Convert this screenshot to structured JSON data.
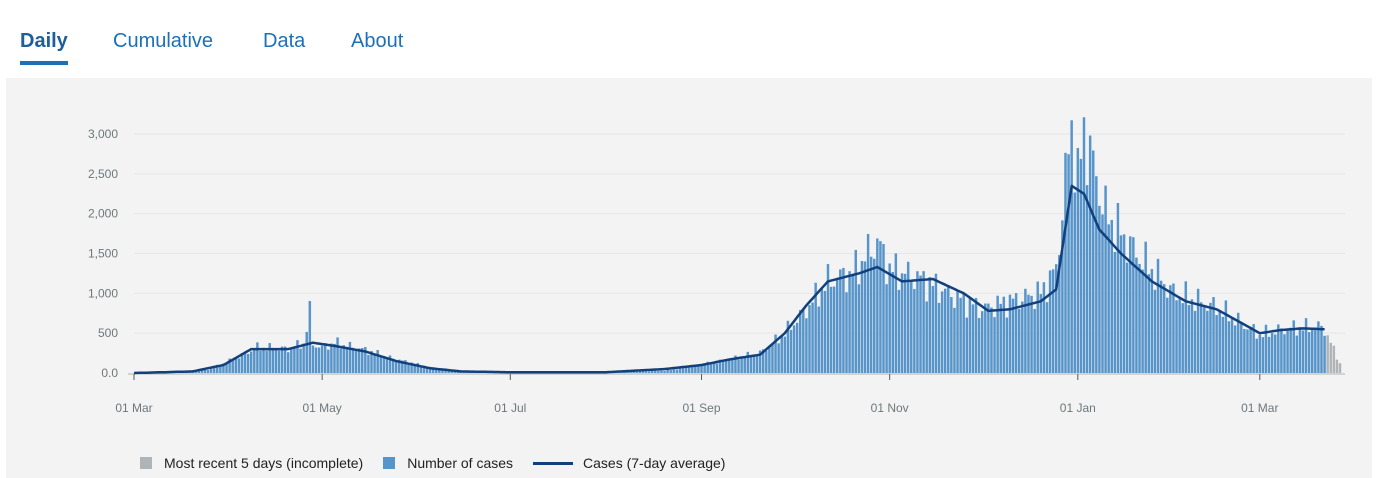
{
  "tabs": [
    {
      "label": "Daily",
      "active": true
    },
    {
      "label": "Cumulative",
      "active": false
    },
    {
      "label": "Data",
      "active": false
    },
    {
      "label": "About",
      "active": false
    }
  ],
  "legend": [
    {
      "label": "Most recent 5 days (incomplete)",
      "color": "#b1b4b6",
      "type": "square"
    },
    {
      "label": "Number of cases",
      "color": "#5694ca",
      "type": "square"
    },
    {
      "label": "Cases (7-day average)",
      "color": "#12407c",
      "type": "line"
    }
  ],
  "chart_data": {
    "type": "bar",
    "xlabel": "",
    "ylabel": "",
    "ylim": [
      0,
      3000
    ],
    "y_ticks": [
      "0.0",
      "500",
      "1,000",
      "1,500",
      "2,000",
      "2,500",
      "3,000"
    ],
    "x_ticks": [
      "01 Mar",
      "01 May",
      "01 Jul",
      "01 Sep",
      "01 Nov",
      "01 Jan",
      "01 Mar"
    ],
    "grid": true,
    "legend_position": "bottom",
    "colors": {
      "bars": "#5694ca",
      "incomplete": "#b1b4b6",
      "average": "#12407c"
    },
    "start_date": "2020-03-01",
    "end_date": "2021-03-27",
    "incomplete_last_days": 5,
    "daily_cases_anchors": [
      [
        "2020-03-01",
        0
      ],
      [
        "2020-03-15",
        5
      ],
      [
        "2020-03-25",
        40
      ],
      [
        "2020-04-01",
        150
      ],
      [
        "2020-04-10",
        320
      ],
      [
        "2020-04-20",
        300
      ],
      [
        "2020-04-25",
        370
      ],
      [
        "2020-04-27",
        760
      ],
      [
        "2020-04-28",
        360
      ],
      [
        "2020-05-01",
        320
      ],
      [
        "2020-05-05",
        380
      ],
      [
        "2020-05-15",
        290
      ],
      [
        "2020-05-25",
        170
      ],
      [
        "2020-06-05",
        70
      ],
      [
        "2020-06-15",
        30
      ],
      [
        "2020-07-01",
        10
      ],
      [
        "2020-08-01",
        10
      ],
      [
        "2020-08-20",
        30
      ],
      [
        "2020-09-01",
        100
      ],
      [
        "2020-09-10",
        170
      ],
      [
        "2020-09-20",
        250
      ],
      [
        "2020-09-28",
        500
      ],
      [
        "2020-10-05",
        800
      ],
      [
        "2020-10-12",
        1150
      ],
      [
        "2020-10-20",
        1250
      ],
      [
        "2020-10-28",
        1650
      ],
      [
        "2020-11-01",
        1300
      ],
      [
        "2020-11-10",
        1200
      ],
      [
        "2020-11-20",
        1000
      ],
      [
        "2020-12-01",
        800
      ],
      [
        "2020-12-10",
        900
      ],
      [
        "2020-12-20",
        1000
      ],
      [
        "2020-12-25",
        1300
      ],
      [
        "2020-12-30",
        3150
      ],
      [
        "2021-01-01",
        2400
      ],
      [
        "2021-01-03",
        3050
      ],
      [
        "2021-01-10",
        2000
      ],
      [
        "2021-01-20",
        1500
      ],
      [
        "2021-02-01",
        1000
      ],
      [
        "2021-02-15",
        820
      ],
      [
        "2021-03-01",
        480
      ],
      [
        "2021-03-10",
        560
      ],
      [
        "2021-03-20",
        580
      ],
      [
        "2021-03-22",
        550
      ],
      [
        "2021-03-27",
        120
      ]
    ],
    "average_anchors": [
      [
        "2020-03-01",
        0
      ],
      [
        "2020-03-20",
        20
      ],
      [
        "2020-03-30",
        100
      ],
      [
        "2020-04-08",
        300
      ],
      [
        "2020-04-20",
        300
      ],
      [
        "2020-04-28",
        380
      ],
      [
        "2020-05-05",
        340
      ],
      [
        "2020-05-15",
        270
      ],
      [
        "2020-05-25",
        150
      ],
      [
        "2020-06-05",
        60
      ],
      [
        "2020-06-15",
        20
      ],
      [
        "2020-07-01",
        10
      ],
      [
        "2020-08-01",
        10
      ],
      [
        "2020-08-20",
        50
      ],
      [
        "2020-09-01",
        100
      ],
      [
        "2020-09-10",
        170
      ],
      [
        "2020-09-20",
        230
      ],
      [
        "2020-09-28",
        500
      ],
      [
        "2020-10-05",
        850
      ],
      [
        "2020-10-12",
        1150
      ],
      [
        "2020-10-22",
        1250
      ],
      [
        "2020-10-28",
        1330
      ],
      [
        "2020-11-05",
        1150
      ],
      [
        "2020-11-15",
        1180
      ],
      [
        "2020-11-25",
        1000
      ],
      [
        "2020-12-03",
        780
      ],
      [
        "2020-12-10",
        800
      ],
      [
        "2020-12-20",
        900
      ],
      [
        "2020-12-25",
        1050
      ],
      [
        "2020-12-30",
        2350
      ],
      [
        "2021-01-03",
        2250
      ],
      [
        "2021-01-08",
        1800
      ],
      [
        "2021-01-15",
        1500
      ],
      [
        "2021-01-25",
        1150
      ],
      [
        "2021-02-05",
        900
      ],
      [
        "2021-02-15",
        800
      ],
      [
        "2021-02-22",
        650
      ],
      [
        "2021-03-01",
        500
      ],
      [
        "2021-03-08",
        540
      ],
      [
        "2021-03-15",
        560
      ],
      [
        "2021-03-22",
        550
      ]
    ]
  }
}
